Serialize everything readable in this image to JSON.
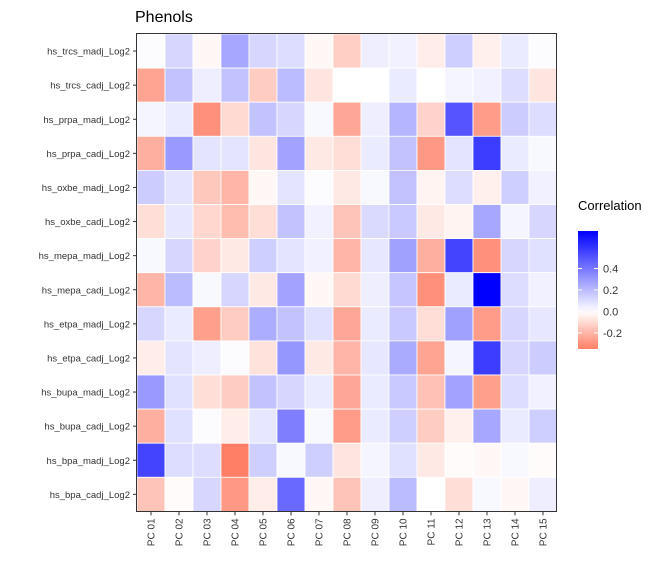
{
  "chart_data": {
    "type": "heatmap",
    "title": "Phenols",
    "x_categories": [
      "PC 01",
      "PC 02",
      "PC 03",
      "PC 04",
      "PC 05",
      "PC 06",
      "PC 07",
      "PC 08",
      "PC 09",
      "PC 10",
      "PC 11",
      "PC 12",
      "PC 13",
      "PC 14",
      "PC 15"
    ],
    "y_categories": [
      "hs_trcs_madj_Log2",
      "hs_trcs_cadj_Log2",
      "hs_prpa_madj_Log2",
      "hs_prpa_cadj_Log2",
      "hs_oxbe_madj_Log2",
      "hs_oxbe_cadj_Log2",
      "hs_mepa_madj_Log2",
      "hs_mepa_cadj_Log2",
      "hs_etpa_madj_Log2",
      "hs_etpa_cadj_Log2",
      "hs_bupa_madj_Log2",
      "hs_bupa_cadj_Log2",
      "hs_bpa_madj_Log2",
      "hs_bpa_cadj_Log2"
    ],
    "values": [
      [
        0.01,
        0.12,
        -0.02,
        0.26,
        0.12,
        0.1,
        -0.02,
        -0.13,
        0.05,
        0.04,
        -0.05,
        0.14,
        -0.04,
        0.06,
        0.01
      ],
      [
        -0.25,
        0.18,
        0.05,
        0.18,
        -0.14,
        0.2,
        -0.07,
        0.0,
        0.0,
        0.06,
        0.0,
        0.03,
        0.04,
        0.1,
        -0.07
      ],
      [
        0.03,
        0.06,
        -0.3,
        -0.1,
        0.18,
        0.12,
        0.02,
        -0.24,
        0.05,
        0.22,
        -0.12,
        0.5,
        -0.27,
        0.15,
        0.1
      ],
      [
        -0.22,
        0.3,
        0.08,
        0.08,
        -0.07,
        0.27,
        -0.06,
        -0.09,
        0.06,
        0.18,
        -0.28,
        0.08,
        0.57,
        0.06,
        0.02
      ],
      [
        0.15,
        0.08,
        -0.15,
        -0.2,
        -0.02,
        0.08,
        0.01,
        -0.06,
        0.02,
        0.18,
        -0.03,
        0.1,
        -0.04,
        0.14,
        0.04
      ],
      [
        -0.09,
        0.07,
        -0.11,
        -0.18,
        -0.09,
        0.18,
        0.04,
        -0.16,
        0.11,
        0.16,
        -0.06,
        -0.03,
        0.26,
        0.03,
        0.12
      ],
      [
        0.02,
        0.12,
        -0.12,
        -0.06,
        0.14,
        0.08,
        0.04,
        -0.2,
        0.07,
        0.28,
        -0.22,
        0.55,
        -0.3,
        0.12,
        0.09
      ],
      [
        -0.2,
        0.2,
        0.02,
        0.12,
        -0.06,
        0.27,
        -0.02,
        -0.1,
        0.05,
        0.17,
        -0.3,
        0.06,
        0.75,
        0.1,
        0.04
      ],
      [
        0.12,
        0.06,
        -0.26,
        -0.14,
        0.24,
        0.18,
        0.09,
        -0.24,
        0.06,
        0.16,
        -0.09,
        0.28,
        -0.27,
        0.12,
        0.07
      ],
      [
        -0.05,
        0.08,
        0.05,
        0.01,
        -0.08,
        0.31,
        -0.06,
        -0.2,
        0.07,
        0.25,
        -0.25,
        0.03,
        0.57,
        0.12,
        0.15
      ],
      [
        0.3,
        0.09,
        -0.09,
        -0.14,
        0.18,
        0.12,
        0.06,
        -0.24,
        0.06,
        0.16,
        -0.17,
        0.27,
        -0.26,
        0.1,
        0.04
      ],
      [
        -0.22,
        0.09,
        0.01,
        -0.05,
        0.07,
        0.38,
        0.02,
        -0.27,
        0.06,
        0.14,
        -0.14,
        -0.04,
        0.26,
        0.06,
        0.14
      ],
      [
        0.55,
        0.1,
        0.1,
        -0.35,
        0.14,
        0.02,
        0.14,
        -0.07,
        0.03,
        0.09,
        -0.06,
        -0.01,
        -0.02,
        0.02,
        -0.01
      ],
      [
        -0.16,
        -0.01,
        0.12,
        -0.28,
        -0.05,
        0.44,
        -0.02,
        -0.16,
        0.05,
        0.2,
        0.0,
        -0.09,
        0.02,
        -0.02,
        0.05
      ]
    ],
    "legend": {
      "title": "Correlation",
      "ticks": [
        0.4,
        0.2,
        0.0,
        -0.2
      ],
      "tick_labels": [
        "0.4",
        "0.2",
        "0.0",
        "-0.2"
      ],
      "range": [
        -0.35,
        0.75
      ],
      "placement": "right"
    },
    "colors": {
      "low": "#ff7f66",
      "mid": "#ffffff",
      "high": "#0000ff"
    },
    "grid": false
  }
}
